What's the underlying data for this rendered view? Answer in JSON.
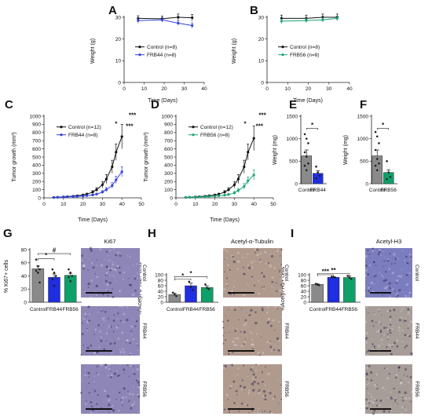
{
  "colors": {
    "control": "#111111",
    "frb44": "#3340dd",
    "frb56": "#19a574",
    "bar_control": "#8a8a8a",
    "bar_frb44": "#1f2ee0",
    "bar_frb56": "#0fa06a",
    "ihc_ki67_bg": "#8d86b6",
    "ihc_tub_bg": "#b09a8e",
    "ihc_h3_ctrl": "#7c7dbe",
    "ihc_h3_bg": "#a79d98"
  },
  "chart_data": [
    {
      "panel": "A",
      "type": "line",
      "xlabel": "Time (Days)",
      "ylabel": "Weight (g)",
      "xlim": [
        0,
        40
      ],
      "ylim": [
        0,
        30
      ],
      "xticks": [
        0,
        10,
        20,
        30,
        40
      ],
      "yticks": [
        0,
        10,
        20,
        30
      ],
      "legend_position": "center-left",
      "series": [
        {
          "name": "Control (n=8)",
          "color_key": "control",
          "x": [
            7,
            19,
            27,
            34
          ],
          "y": [
            29.5,
            29.3,
            30,
            29.8
          ],
          "err": [
            1.2,
            1.2,
            1.5,
            1.5
          ]
        },
        {
          "name": "FRB44 (n=8)",
          "color_key": "frb44",
          "x": [
            7,
            19,
            27,
            34
          ],
          "y": [
            28.5,
            28.8,
            27.3,
            26.2
          ],
          "err": [
            1.2,
            1.0,
            1.0,
            1.2
          ]
        }
      ]
    },
    {
      "panel": "B",
      "type": "line",
      "xlabel": "Time (Days)",
      "ylabel": "Weight (g)",
      "xlim": [
        0,
        40
      ],
      "ylim": [
        0,
        30
      ],
      "xticks": [
        0,
        10,
        20,
        30,
        40
      ],
      "yticks": [
        0,
        10,
        20,
        30
      ],
      "legend_position": "center-left",
      "series": [
        {
          "name": "Control (n=8)",
          "color_key": "control",
          "x": [
            7,
            19,
            27,
            34
          ],
          "y": [
            29.5,
            29.5,
            30,
            30
          ],
          "err": [
            1.5,
            1.5,
            1.5,
            1.5
          ]
        },
        {
          "name": "FRB56 (n=8)",
          "color_key": "frb56",
          "x": [
            7,
            19,
            27,
            34
          ],
          "y": [
            28.2,
            28.5,
            28.8,
            29.5
          ],
          "err": [
            1.0,
            1.0,
            1.0,
            1.0
          ]
        }
      ]
    },
    {
      "panel": "C",
      "type": "line",
      "xlabel": "Time (Days)",
      "ylabel": "Tumor growth (mm³)",
      "xlim": [
        0,
        50
      ],
      "ylim": [
        0,
        1000
      ],
      "xticks": [
        0,
        10,
        20,
        30,
        40,
        50
      ],
      "yticks": [
        0,
        100,
        200,
        300,
        400,
        500,
        600,
        700,
        800,
        900,
        1000
      ],
      "legend_position": "upper-left",
      "series": [
        {
          "name": "Control (n=12)",
          "color_key": "control",
          "x": [
            5,
            7,
            10,
            12,
            15,
            17,
            20,
            22,
            25,
            27,
            30,
            32,
            35,
            37,
            40
          ],
          "y": [
            5,
            8,
            12,
            15,
            20,
            25,
            35,
            45,
            70,
            100,
            160,
            230,
            380,
            560,
            750
          ],
          "err": [
            3,
            4,
            5,
            6,
            7,
            8,
            10,
            12,
            18,
            25,
            40,
            55,
            80,
            100,
            150
          ]
        },
        {
          "name": "FRB44 (n=8)",
          "color_key": "frb44",
          "x": [
            5,
            7,
            10,
            12,
            15,
            17,
            20,
            22,
            25,
            27,
            30,
            32,
            35,
            37,
            40
          ],
          "y": [
            5,
            7,
            10,
            12,
            15,
            18,
            22,
            28,
            35,
            45,
            70,
            100,
            150,
            220,
            320
          ],
          "err": [
            3,
            3,
            4,
            5,
            5,
            6,
            7,
            8,
            10,
            12,
            18,
            25,
            35,
            45,
            60
          ]
        }
      ],
      "annotations": [
        {
          "text": "*",
          "x": 37,
          "y": 880,
          "anchor": "middle"
        },
        {
          "text": "***",
          "x": 42,
          "y": 850,
          "anchor": "start"
        },
        {
          "text": "***",
          "x": 43.5,
          "y": 985,
          "anchor": "start"
        }
      ]
    },
    {
      "panel": "D",
      "type": "line",
      "xlabel": "Time (Days)",
      "ylabel": "Tumor growth (mm³)",
      "xlim": [
        0,
        50
      ],
      "ylim": [
        0,
        1000
      ],
      "xticks": [
        0,
        10,
        20,
        30,
        40,
        50
      ],
      "yticks": [
        0,
        100,
        200,
        300,
        400,
        500,
        600,
        700,
        800,
        900,
        1000
      ],
      "legend_position": "upper-left",
      "series": [
        {
          "name": "Control (n=12)",
          "color_key": "control",
          "x": [
            5,
            7,
            10,
            12,
            15,
            17,
            20,
            22,
            25,
            27,
            30,
            32,
            35,
            37,
            40
          ],
          "y": [
            5,
            8,
            12,
            15,
            20,
            25,
            35,
            45,
            70,
            100,
            160,
            230,
            380,
            560,
            730
          ],
          "err": [
            3,
            4,
            5,
            6,
            7,
            8,
            10,
            12,
            18,
            25,
            40,
            55,
            80,
            100,
            150
          ]
        },
        {
          "name": "FRB56 (n=8)",
          "color_key": "frb56",
          "x": [
            5,
            7,
            10,
            12,
            15,
            17,
            20,
            22,
            25,
            27,
            30,
            32,
            35,
            37,
            40
          ],
          "y": [
            5,
            7,
            9,
            11,
            14,
            16,
            20,
            25,
            32,
            40,
            60,
            90,
            140,
            210,
            280
          ],
          "err": [
            3,
            3,
            4,
            4,
            5,
            6,
            7,
            8,
            10,
            12,
            18,
            25,
            35,
            45,
            60
          ]
        }
      ],
      "annotations": [
        {
          "text": "*",
          "x": 35.5,
          "y": 880,
          "anchor": "middle"
        },
        {
          "text": "***",
          "x": 41,
          "y": 850,
          "anchor": "start"
        },
        {
          "text": "***",
          "x": 42.5,
          "y": 985,
          "anchor": "start"
        }
      ]
    },
    {
      "panel": "E",
      "type": "bar",
      "categories": [
        "Control",
        "FRB44"
      ],
      "color_keys": [
        "bar_control",
        "bar_frb44"
      ],
      "values": [
        620,
        230
      ],
      "err": [
        130,
        60
      ],
      "points": [
        [
          1100,
          1000,
          900,
          700,
          600,
          450,
          400,
          300
        ],
        [
          380,
          250,
          180,
          120
        ]
      ],
      "ylabel": "Weight (mg)",
      "ylim": [
        0,
        1500
      ],
      "yticks": [
        0,
        500,
        1000,
        1500
      ],
      "sig": [
        {
          "text": "*",
          "a": 0,
          "b": 1,
          "y": 1230
        }
      ]
    },
    {
      "panel": "F",
      "type": "bar",
      "categories": [
        "Control",
        "FRB56"
      ],
      "color_keys": [
        "bar_control",
        "bar_frb56"
      ],
      "values": [
        620,
        250
      ],
      "err": [
        130,
        60
      ],
      "points": [
        [
          1150,
          1050,
          900,
          750,
          550,
          450,
          400,
          300
        ],
        [
          500,
          250,
          150,
          100
        ]
      ],
      "ylabel": "Weight (mg)",
      "ylim": [
        0,
        1500
      ],
      "yticks": [
        0,
        500,
        1000,
        1500
      ],
      "sig": [
        {
          "text": "*",
          "a": 0,
          "b": 1,
          "y": 1230
        }
      ]
    },
    {
      "panel": "G",
      "type": "bar",
      "categories": [
        "Control",
        "FRB44",
        "FRB56"
      ],
      "color_keys": [
        "bar_control",
        "bar_frb44",
        "bar_frb56"
      ],
      "values": [
        51,
        38,
        41
      ],
      "err": [
        4,
        5,
        3
      ],
      "points": [
        [
          65,
          55,
          50,
          48,
          45,
          30
        ],
        [
          50,
          45,
          40,
          35,
          25
        ],
        [
          50,
          45,
          40,
          38,
          32
        ]
      ],
      "ylabel": "% Ki67+ cells",
      "ylim": [
        0,
        80
      ],
      "yticks": [
        0,
        20,
        40,
        60,
        80
      ],
      "sig": [
        {
          "text": "*",
          "a": 0,
          "b": 1,
          "y": 66
        },
        {
          "text": "#",
          "a": 0,
          "b": 2,
          "y": 74
        }
      ]
    },
    {
      "panel": "H",
      "type": "bar",
      "categories": [
        "Control",
        "FRB44",
        "FRB56"
      ],
      "color_keys": [
        "bar_control",
        "bar_frb44",
        "bar_frb56"
      ],
      "values": [
        28,
        60,
        54
      ],
      "err": [
        5,
        10,
        6
      ],
      "points": [
        [
          35,
          28,
          22
        ],
        [
          75,
          55,
          45
        ],
        [
          65,
          52,
          48
        ]
      ],
      "ylabel": "% Acetyl-α-Tub+ cells",
      "ylim": [
        0,
        100
      ],
      "yticks": [
        0,
        20,
        40,
        60,
        80,
        100
      ],
      "sig": [
        {
          "text": "*",
          "a": 0,
          "b": 1,
          "y": 85
        },
        {
          "text": "*",
          "a": 0,
          "b": 2,
          "y": 93
        }
      ]
    },
    {
      "panel": "I",
      "type": "bar",
      "categories": [
        "Control",
        "FRB44",
        "FRB56"
      ],
      "color_keys": [
        "bar_control",
        "bar_frb44",
        "bar_frb56"
      ],
      "values": [
        65,
        91,
        90
      ],
      "err": [
        3,
        2,
        6
      ],
      "points": [
        [
          67,
          64,
          62
        ],
        [
          93,
          92,
          90
        ],
        [
          96,
          90,
          85
        ]
      ],
      "ylabel": "%Acetyl-H3+ cells",
      "ylim": [
        0,
        100
      ],
      "yticks": [
        0,
        20,
        40,
        60,
        80,
        100
      ],
      "sig": [
        {
          "text": "***",
          "a": 0,
          "b": 1,
          "y": 100
        },
        {
          "text": "**",
          "a": 0,
          "b": 2,
          "y": 105
        }
      ]
    }
  ],
  "stains": [
    {
      "panel": "G",
      "title": "Ki67",
      "labels": [
        "Control",
        "FRB44",
        "FRB56"
      ],
      "bg_keys": [
        "ihc_ki67_bg",
        "ihc_ki67_bg",
        "ihc_ki67_bg"
      ]
    },
    {
      "panel": "H",
      "title": "Acetyl-α-Tubulin",
      "labels": [
        "Control",
        "FRB44",
        "FRB56"
      ],
      "bg_keys": [
        "ihc_tub_bg",
        "ihc_tub_bg",
        "ihc_tub_bg"
      ]
    },
    {
      "panel": "I",
      "title": "Acetyl-H3",
      "labels": [
        "Control",
        "FRB44",
        "FRB56"
      ],
      "bg_keys": [
        "ihc_h3_ctrl",
        "ihc_h3_bg",
        "ihc_h3_bg"
      ]
    }
  ]
}
